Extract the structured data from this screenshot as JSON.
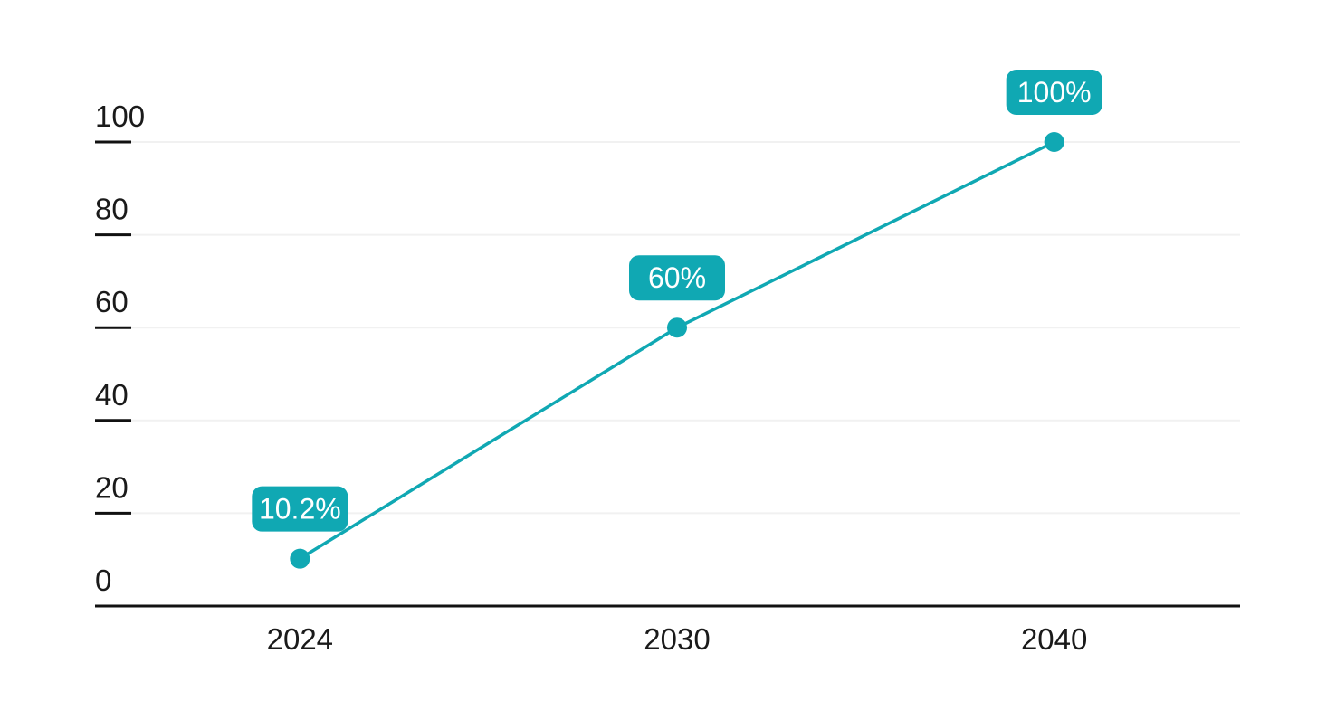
{
  "figure": {
    "title": "",
    "description": "Teal line chart of percentage values by year with callout value badges"
  },
  "colors": {
    "accent": "#10a8b3",
    "grid_line": "#f1f1f1",
    "axis_line": "#111111",
    "tick_mark": "#111111",
    "axis_text": "#1a1a1a",
    "badge_fill": "#10a8b3",
    "badge_text": "#ffffff",
    "background": "#ffffff"
  },
  "chart_data": {
    "type": "line",
    "title": "",
    "xlabel": "",
    "ylabel": "",
    "categories": [
      "2024",
      "2030",
      "2040"
    ],
    "series": [
      {
        "name": "value-percent",
        "values": [
          10.2,
          60,
          100
        ]
      }
    ],
    "point_labels": [
      "10.2%",
      "60%",
      "100%"
    ],
    "yticks": [
      0,
      20,
      40,
      60,
      80,
      100
    ],
    "ytick_labels": [
      "0",
      "20",
      "40",
      "60",
      "80",
      "100"
    ],
    "ylim": [
      0,
      100
    ],
    "grid": "horizontal-light",
    "legend": "none",
    "marker": "circle"
  }
}
